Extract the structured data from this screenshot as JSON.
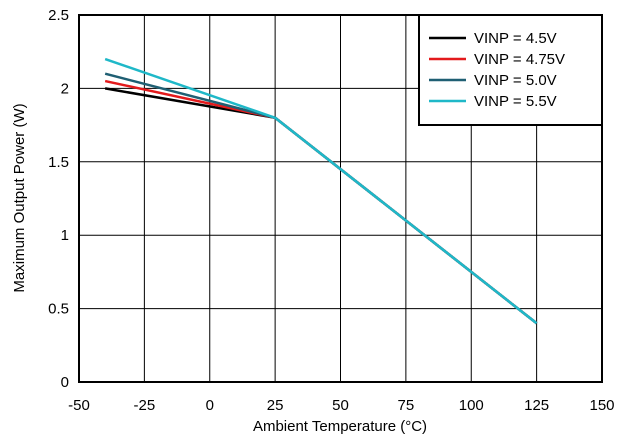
{
  "chart_data": {
    "type": "line",
    "xlabel": "Ambient Temperature (°C)",
    "ylabel": "Maximum Output Power (W)",
    "xlim": [
      -50,
      150
    ],
    "ylim": [
      0,
      2.5
    ],
    "xticks": [
      -50,
      -25,
      0,
      25,
      50,
      75,
      100,
      125,
      150
    ],
    "yticks": [
      0,
      0.5,
      1,
      1.5,
      2,
      2.5
    ],
    "xtick_labels": [
      "-50",
      "-25",
      "0",
      "25",
      "50",
      "75",
      "100",
      "125",
      "150"
    ],
    "ytick_labels": [
      "0",
      "0.5",
      "1",
      "1.5",
      "2",
      "2.5"
    ],
    "grid": true,
    "legend_position": "top-right",
    "series": [
      {
        "name": "VINP = 4.5V",
        "color": "#000000",
        "x": [
          -40,
          25,
          125
        ],
        "y": [
          2.0,
          1.8,
          0.4
        ]
      },
      {
        "name": "VINP = 4.75V",
        "color": "#e31a1c",
        "x": [
          -40,
          25,
          125
        ],
        "y": [
          2.05,
          1.8,
          0.4
        ]
      },
      {
        "name": "VINP = 5.0V",
        "color": "#1f5f73",
        "x": [
          -40,
          25,
          125
        ],
        "y": [
          2.1,
          1.8,
          0.4
        ]
      },
      {
        "name": "VINP = 5.5V",
        "color": "#1fb8c8",
        "x": [
          -40,
          25,
          125
        ],
        "y": [
          2.2,
          1.8,
          0.4
        ]
      }
    ]
  }
}
